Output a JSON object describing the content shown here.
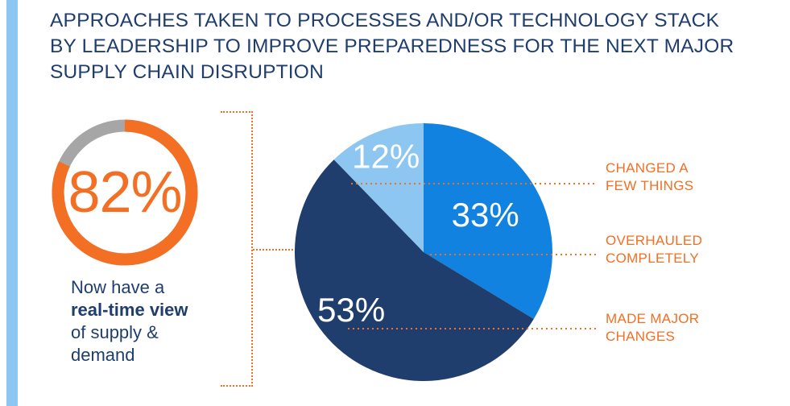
{
  "title_lines": [
    "APPROACHES TAKEN TO PROCESSES AND/OR TECHNOLOGY STACK",
    "BY LEADERSHIP TO IMPROVE PREPAREDNESS FOR THE NEXT MAJOR",
    "SUPPLY CHAIN DISRUPTION"
  ],
  "highlight": {
    "value_text": "82%",
    "value": 82,
    "caption": {
      "line1": "Now have a",
      "bold": "real-time view",
      "line3": "of supply &",
      "line4": "demand"
    }
  },
  "colors": {
    "accent_bar": "#8cc6f1",
    "title": "#1f3e6e",
    "orange": "#f26f24",
    "ring_track": "#a6a6a6"
  },
  "chart_data": {
    "type": "pie",
    "slices": [
      {
        "label_lines": [
          "OVERHAULED",
          "COMPLETELY"
        ],
        "value": 33,
        "value_text": "33%",
        "color": "#1282e0"
      },
      {
        "label_lines": [
          "MADE MAJOR",
          "CHANGES"
        ],
        "value": 53,
        "value_text": "53%",
        "color": "#1f3e6e"
      },
      {
        "label_lines": [
          "CHANGED A",
          "FEW THINGS"
        ],
        "value": 12,
        "value_text": "12%",
        "color": "#8cc6f1"
      }
    ]
  }
}
